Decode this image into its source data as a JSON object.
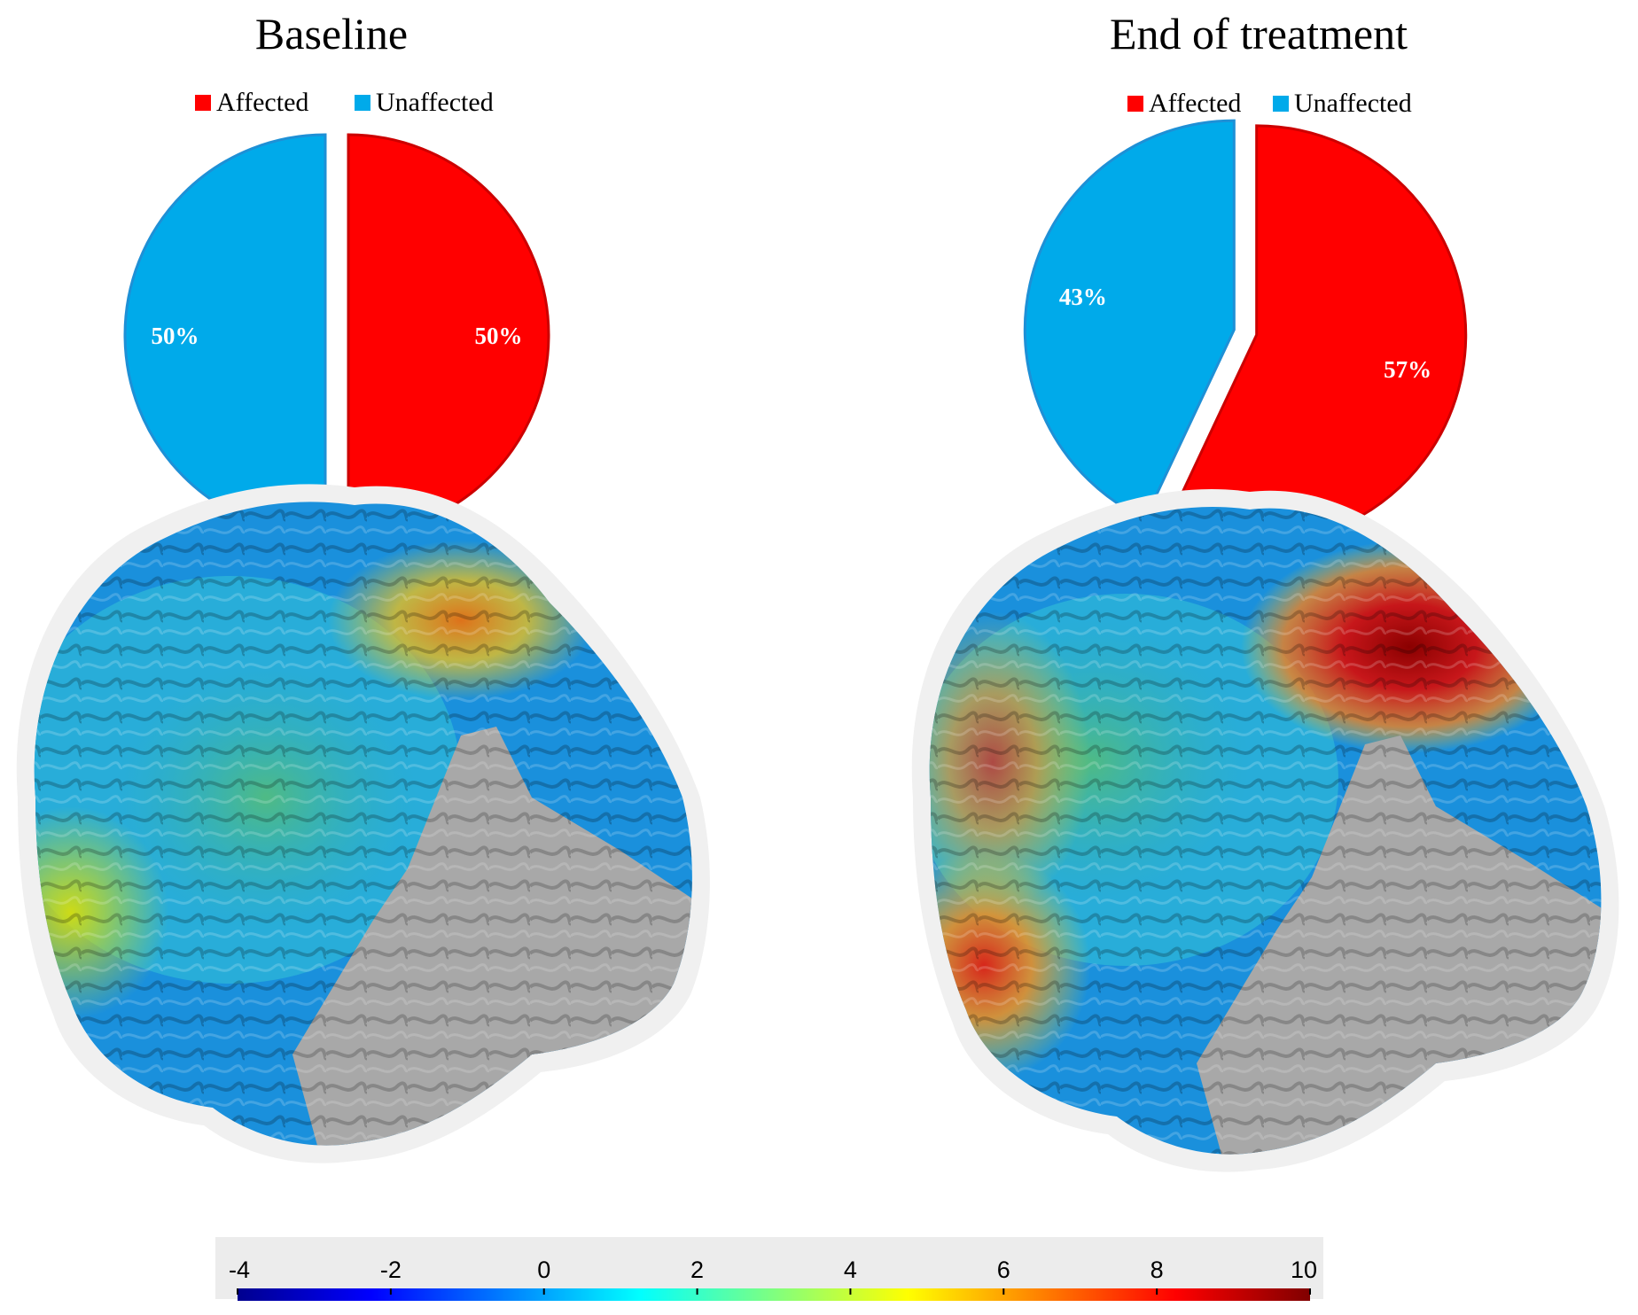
{
  "colors": {
    "affected": "#ff0000",
    "unaffected": "#00aaea",
    "slice_stroke_unaffected": "#1e90d6",
    "slice_stroke_affected": "#cc0000",
    "cortex_gray": "#a8a8a8"
  },
  "chart_data": [
    {
      "type": "pie",
      "title": "Baseline",
      "legend": [
        "Affected",
        "Unaffected"
      ],
      "legend_position": "top",
      "slices": [
        {
          "name": "Affected",
          "value": 50,
          "label": "50%"
        },
        {
          "name": "Unaffected",
          "value": 50,
          "label": "50%"
        }
      ]
    },
    {
      "type": "pie",
      "title": "End of treatment",
      "legend": [
        "Affected",
        "Unaffected"
      ],
      "legend_position": "top",
      "slices": [
        {
          "name": "Affected",
          "value": 57,
          "label": "57%"
        },
        {
          "name": "Unaffected",
          "value": 43,
          "label": "43%"
        }
      ]
    },
    {
      "type": "heatmap",
      "title": "",
      "colorbar": {
        "min": -4,
        "max": 10,
        "ticks": [
          "-4",
          "-2",
          "0",
          "2",
          "4",
          "6",
          "8",
          "10"
        ],
        "colormap": "jet"
      }
    }
  ]
}
